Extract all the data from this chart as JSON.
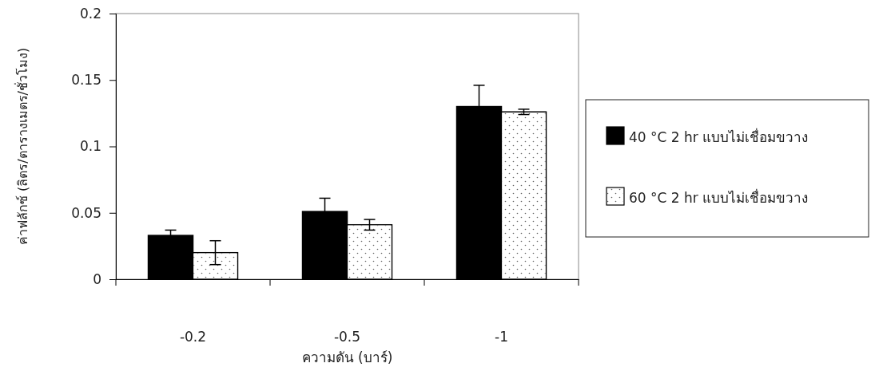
{
  "chart_data": {
    "type": "bar",
    "xlabel": "ความดัน (บาร์)",
    "ylabel": "ค่าฟลักซ์ (ลิตร/ตารางเมตร/ชั่วโมง)",
    "categories": [
      "-0.2",
      "-0.5",
      "-1"
    ],
    "series": [
      {
        "name": "40 °C 2 hr แบบไม่เชื่อมขวาง",
        "color": "#000000",
        "values": [
          0.033,
          0.051,
          0.13
        ],
        "errors": [
          0.004,
          0.01,
          0.016
        ]
      },
      {
        "name": "60 °C 2 hr แบบไม่เชื่อมขวาง",
        "color": "#ffffff",
        "values": [
          0.02,
          0.041,
          0.126
        ],
        "errors": [
          0.009,
          0.004,
          0.002
        ]
      }
    ],
    "ylim": [
      0,
      0.2
    ],
    "yticks": [
      0,
      0.05,
      0.1,
      0.15,
      0.2
    ],
    "grid": false,
    "legend": "right"
  }
}
